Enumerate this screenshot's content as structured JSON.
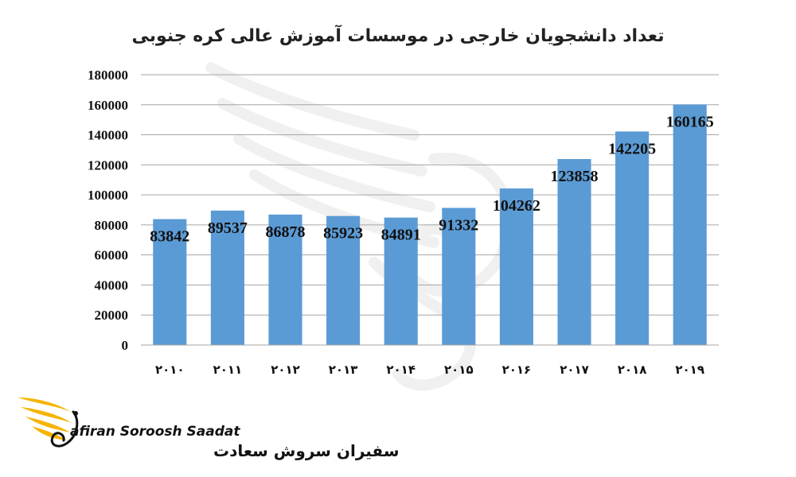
{
  "chart_data": {
    "type": "bar",
    "title": "تعداد دانشجویان خارجی در موسسات آموزش عالی کره جنوبی",
    "categories": [
      "۲۰۱۰",
      "۲۰۱۱",
      "۲۰۱۲",
      "۲۰۱۳",
      "۲۰۱۴",
      "۲۰۱۵",
      "۲۰۱۶",
      "۲۰۱۷",
      "۲۰۱۸",
      "۲۰۱۹"
    ],
    "values": [
      83842,
      89537,
      86878,
      85923,
      84891,
      91332,
      104262,
      123858,
      142205,
      160165
    ],
    "ylim": [
      0,
      180000
    ],
    "yticks": [
      0,
      20000,
      40000,
      60000,
      80000,
      100000,
      120000,
      140000,
      160000,
      180000
    ],
    "xlabel": "",
    "ylabel": "",
    "grid": true,
    "data_labels": true,
    "bar_color": "#5B9BD5",
    "grid_color": "#A6A6A6"
  },
  "logo": {
    "text_en": "afiran Soroosh Saadat",
    "text_fa": "سفیران سروش سعادت",
    "primary_color": "#F5B400",
    "secondary_color": "#111111"
  }
}
